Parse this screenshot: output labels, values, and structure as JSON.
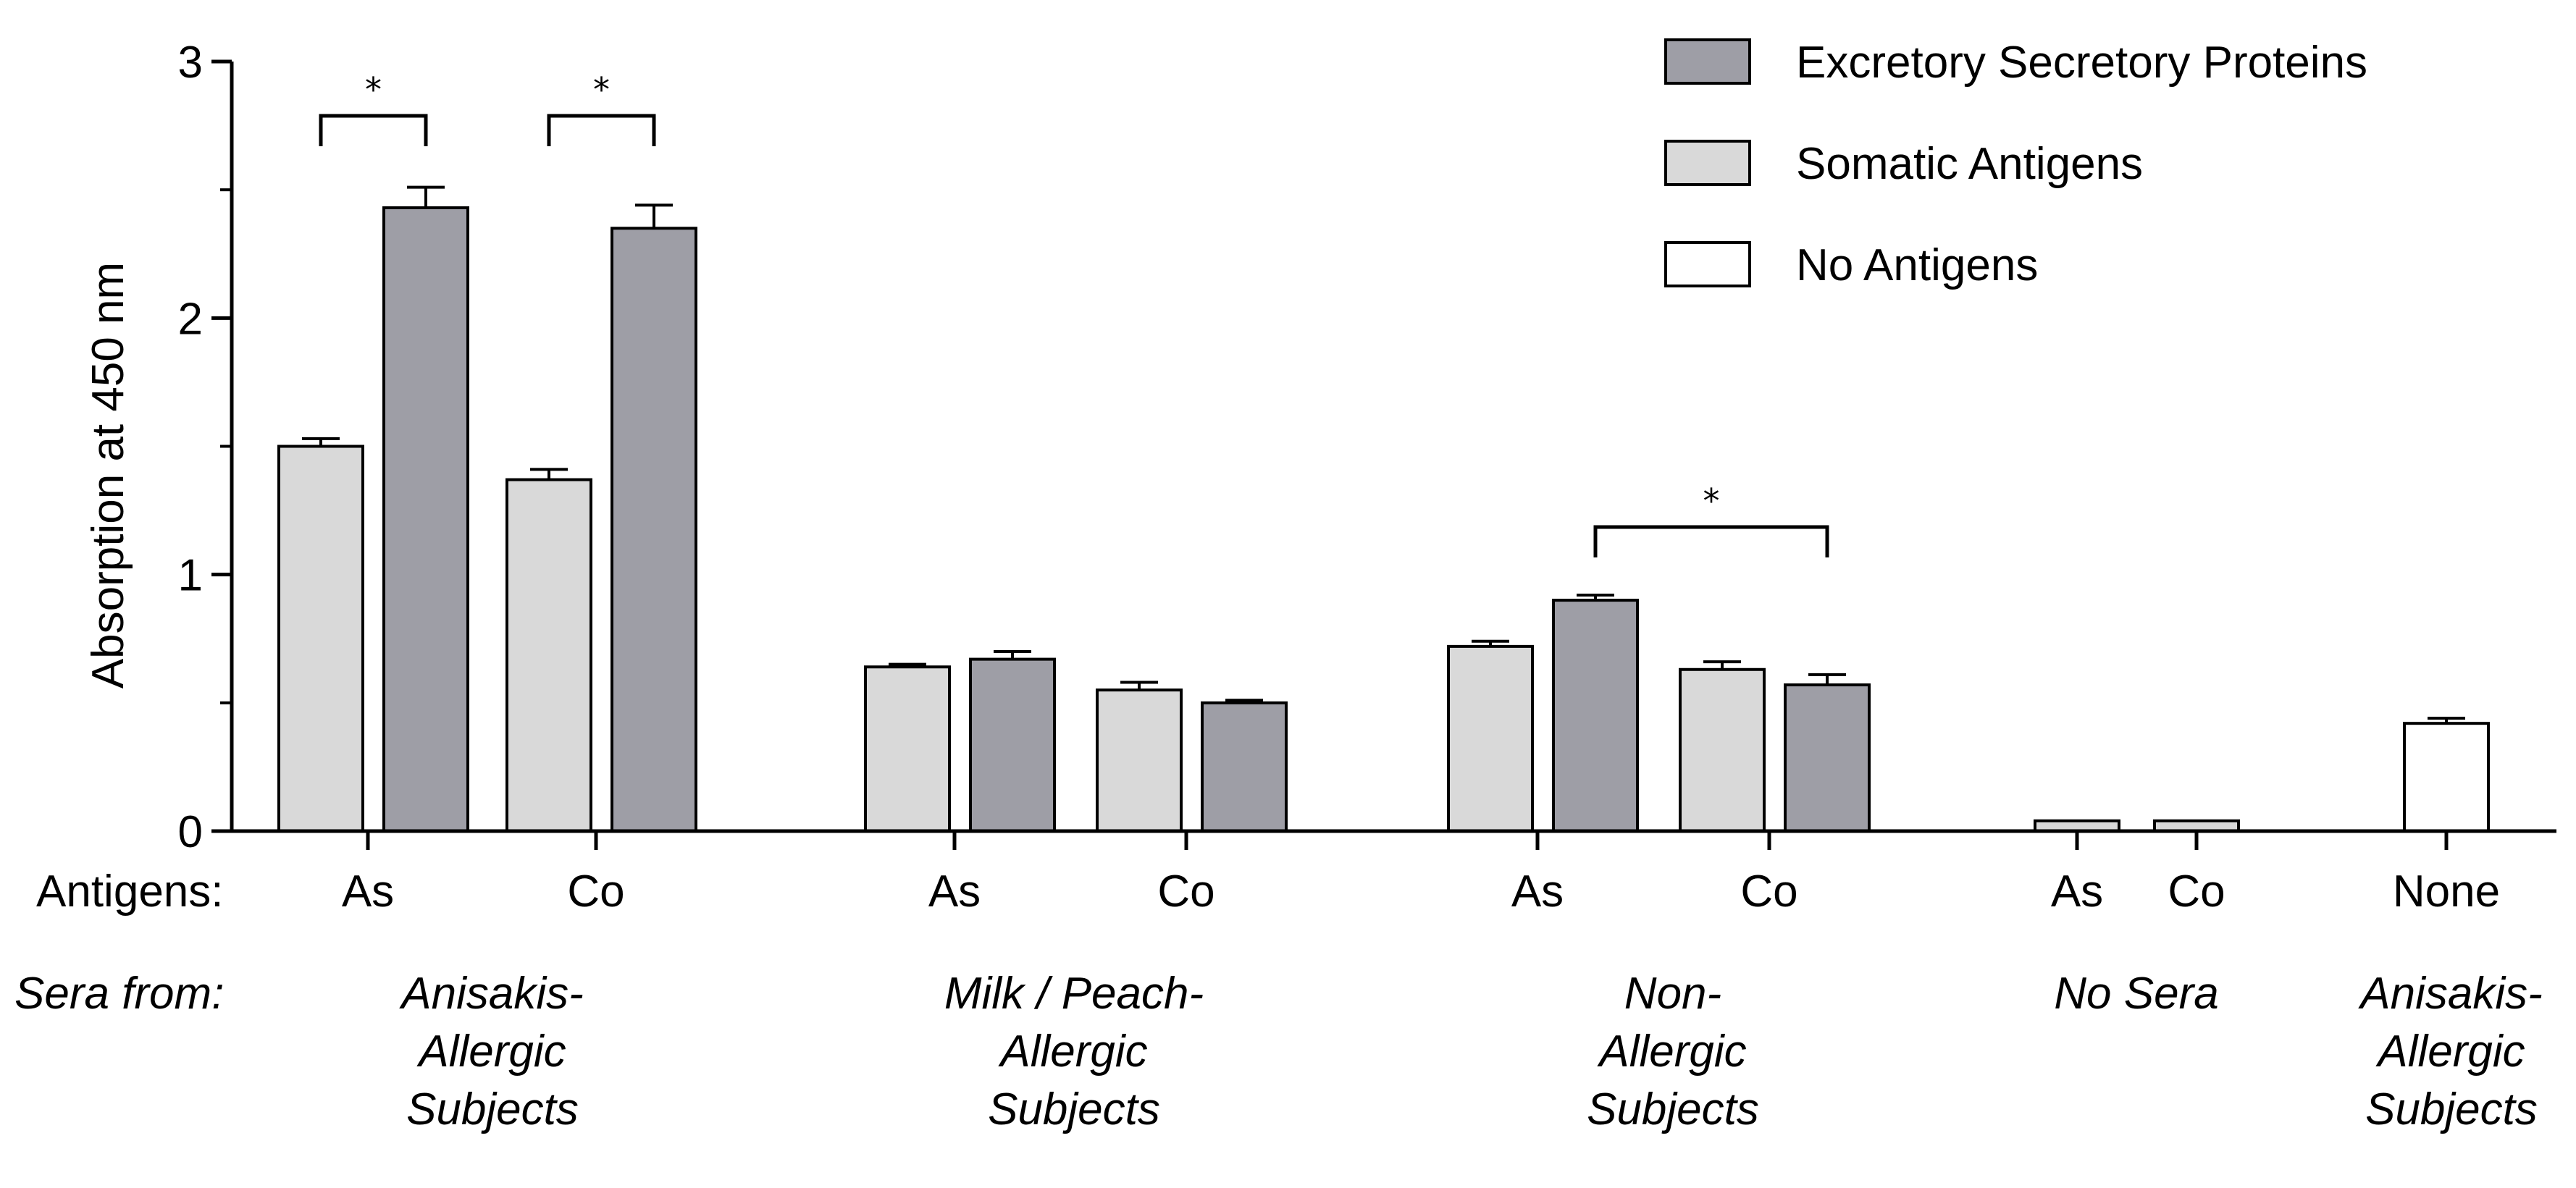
{
  "chart_data": {
    "type": "bar",
    "ylabel": "Absorption at 450 nm",
    "ylim": [
      0,
      3
    ],
    "yticks": [
      0,
      1,
      2,
      3
    ],
    "grid": false,
    "legend_position": "top-right",
    "series": [
      {
        "key": "es",
        "name": "Excretory Secretory Proteins",
        "color": "#9e9ea6"
      },
      {
        "key": "som",
        "name": "Somatic Antigens",
        "color": "#d9d9d9"
      },
      {
        "key": "none",
        "name": "No Antigens",
        "color": "#ffffff"
      }
    ],
    "bars": [
      {
        "series": "som",
        "group": 0,
        "antigen": "As",
        "value": 1.5,
        "error": 0.03
      },
      {
        "series": "es",
        "group": 0,
        "antigen": "As",
        "value": 2.43,
        "error": 0.08
      },
      {
        "series": "som",
        "group": 0,
        "antigen": "Co",
        "value": 1.37,
        "error": 0.04
      },
      {
        "series": "es",
        "group": 0,
        "antigen": "Co",
        "value": 2.35,
        "error": 0.09
      },
      {
        "series": "som",
        "group": 1,
        "antigen": "As",
        "value": 0.64,
        "error": 0.01
      },
      {
        "series": "es",
        "group": 1,
        "antigen": "As",
        "value": 0.67,
        "error": 0.03
      },
      {
        "series": "som",
        "group": 1,
        "antigen": "Co",
        "value": 0.55,
        "error": 0.03
      },
      {
        "series": "es",
        "group": 1,
        "antigen": "Co",
        "value": 0.5,
        "error": 0.01
      },
      {
        "series": "som",
        "group": 2,
        "antigen": "As",
        "value": 0.72,
        "error": 0.02
      },
      {
        "series": "es",
        "group": 2,
        "antigen": "As",
        "value": 0.9,
        "error": 0.02
      },
      {
        "series": "som",
        "group": 2,
        "antigen": "Co",
        "value": 0.63,
        "error": 0.03
      },
      {
        "series": "es",
        "group": 2,
        "antigen": "Co",
        "value": 0.57,
        "error": 0.04
      },
      {
        "series": "som",
        "group": 3,
        "antigen": "As",
        "value": 0.04,
        "error": 0.0
      },
      {
        "series": "som",
        "group": 3,
        "antigen": "Co",
        "value": 0.04,
        "error": 0.0
      },
      {
        "series": "none",
        "group": 4,
        "antigen": "None",
        "value": 0.42,
        "error": 0.02
      }
    ],
    "antigen_labels": [
      {
        "text": "As",
        "group": 0,
        "pair": 0
      },
      {
        "text": "Co",
        "group": 0,
        "pair": 1
      },
      {
        "text": "As",
        "group": 1,
        "pair": 0
      },
      {
        "text": "Co",
        "group": 1,
        "pair": 1
      },
      {
        "text": "As",
        "group": 2,
        "pair": 0
      },
      {
        "text": "Co",
        "group": 2,
        "pair": 1
      },
      {
        "text": "As",
        "group": 3,
        "pair": 0
      },
      {
        "text": "Co",
        "group": 3,
        "pair": 1
      },
      {
        "text": "None",
        "group": 4,
        "pair": 0
      }
    ],
    "groups": [
      {
        "lines": [
          "Anisakis-",
          "Allergic",
          "Subjects"
        ]
      },
      {
        "lines": [
          "Milk / Peach-",
          "Allergic",
          "Subjects"
        ]
      },
      {
        "lines": [
          "Non-",
          "Allergic",
          "Subjects"
        ]
      },
      {
        "lines": [
          "No Sera"
        ]
      },
      {
        "lines": [
          "Anisakis-",
          "Allergic",
          "Subjects"
        ]
      }
    ],
    "row_labels": {
      "antigens": "Antigens:",
      "sera": "Sera from:"
    },
    "significance": [
      {
        "from_bar": 0,
        "to_bar": 1,
        "label": "*"
      },
      {
        "from_bar": 2,
        "to_bar": 3,
        "label": "*"
      },
      {
        "from_bar": 9,
        "to_bar": 11,
        "label": "*"
      }
    ]
  }
}
